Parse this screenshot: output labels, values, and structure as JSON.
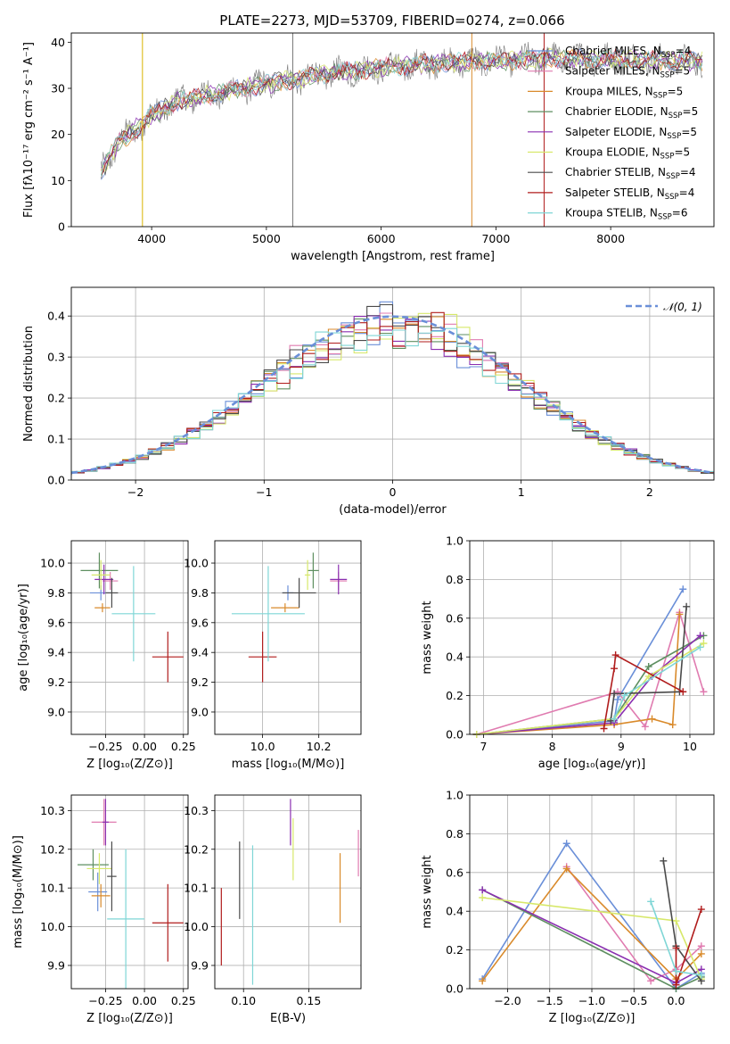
{
  "figure_title": "PLATE=2273, MJD=53709, FIBERID=0274, z=0.066",
  "models": [
    {
      "label": "Chabrier MILES, N$_{SSP}$=4",
      "color": "#6a8fd8"
    },
    {
      "label": "Salpeter MILES, N$_{SSP}$=5",
      "color": "#e07bb0"
    },
    {
      "label": "Kroupa MILES, N$_{SSP}$=5",
      "color": "#d98a2b"
    },
    {
      "label": "Chabrier ELODIE, N$_{SSP}$=5",
      "color": "#5e8f60"
    },
    {
      "label": "Salpeter ELODIE, N$_{SSP}$=5",
      "color": "#8a2fb0"
    },
    {
      "label": "Kroupa ELODIE, N$_{SSP}$=5",
      "color": "#d7e86a"
    },
    {
      "label": "Chabrier STELIB, N$_{SSP}$=4",
      "color": "#4a4a4a"
    },
    {
      "label": "Salpeter STELIB, N$_{SSP}$=4",
      "color": "#b01c1c"
    },
    {
      "label": "Kroupa STELIB, N$_{SSP}$=6",
      "color": "#7fd6d6"
    }
  ],
  "legend_labels": [
    {
      "pre": "Chabrier MILES, N",
      "sub": "SSP",
      "post": "=4"
    },
    {
      "pre": "Salpeter MILES, N",
      "sub": "SSP",
      "post": "=5"
    },
    {
      "pre": "Kroupa MILES, N",
      "sub": "SSP",
      "post": "=5"
    },
    {
      "pre": "Chabrier ELODIE, N",
      "sub": "SSP",
      "post": "=5"
    },
    {
      "pre": "Salpeter ELODIE, N",
      "sub": "SSP",
      "post": "=5"
    },
    {
      "pre": "Kroupa ELODIE, N",
      "sub": "SSP",
      "post": "=5"
    },
    {
      "pre": "Chabrier STELIB, N",
      "sub": "SSP",
      "post": "=4"
    },
    {
      "pre": "Salpeter STELIB, N",
      "sub": "SSP",
      "post": "=4"
    },
    {
      "pre": "Kroupa STELIB, N",
      "sub": "SSP",
      "post": "=6"
    }
  ],
  "chart_data": [
    {
      "id": "spectrum",
      "type": "line",
      "xlabel": "wavelength [Angstrom, rest frame]",
      "ylabel": "Flux [fλ10⁻¹⁷ erg cm⁻² s⁻¹ A⁻¹]",
      "xlim": [
        3300,
        8900
      ],
      "ylim": [
        0,
        42
      ],
      "xticks": [
        "4000",
        "5000",
        "6000",
        "7000",
        "8000"
      ],
      "yticks": [
        "0",
        "10",
        "20",
        "30",
        "40"
      ],
      "continuum_knots": [
        [
          3560,
          12
        ],
        [
          3700,
          18
        ],
        [
          3900,
          22
        ],
        [
          4000,
          24
        ],
        [
          4200,
          27
        ],
        [
          4600,
          29
        ],
        [
          5000,
          31
        ],
        [
          5500,
          33
        ],
        [
          6000,
          34.5
        ],
        [
          6500,
          35.5
        ],
        [
          7000,
          36
        ],
        [
          7500,
          36.5
        ],
        [
          8000,
          36.3
        ],
        [
          8500,
          36
        ],
        [
          8800,
          36
        ]
      ],
      "emission_spikes": [
        3727,
        5007,
        6563,
        6583
      ]
    },
    {
      "id": "residuals",
      "type": "histogram",
      "xlabel": "(data-model)/error",
      "ylabel": "Normed distribution",
      "xlim": [
        -2.5,
        2.5
      ],
      "ylim": [
        0,
        0.47
      ],
      "xticks": [
        "−2",
        "−1",
        "0",
        "1",
        "2"
      ],
      "yticks": [
        "0.0",
        "0.1",
        "0.2",
        "0.3",
        "0.4"
      ],
      "bin_width": 0.1,
      "reference_label": "𝒩(0, 1)",
      "reference_color": "#6a8fd8"
    },
    {
      "id": "age_vs_Z",
      "type": "errorbar",
      "xlabel": "Z [log₁₀(Z/Z⊙)]",
      "ylabel": "age  [log₁₀(age/yr)]",
      "xlim": [
        -0.47,
        0.28
      ],
      "ylim": [
        8.85,
        10.15
      ],
      "xticks": [
        "−0.25",
        "0.00",
        "0.25"
      ],
      "xtick_values": [
        -0.25,
        0,
        0.25
      ],
      "yticks": [
        "9.0",
        "9.2",
        "9.4",
        "9.6",
        "9.8",
        "10.0"
      ],
      "ytick_values": [
        9.0,
        9.2,
        9.4,
        9.6,
        9.8,
        10.0
      ],
      "points": [
        {
          "x": -0.28,
          "xerr": 0.07,
          "y": 9.8,
          "yerr": 0.05,
          "model": 0
        },
        {
          "x": -0.22,
          "xerr": 0.05,
          "y": 9.88,
          "yerr": 0.06,
          "model": 1
        },
        {
          "x": -0.27,
          "xerr": 0.05,
          "y": 9.7,
          "yerr": 0.03,
          "model": 2
        },
        {
          "x": -0.29,
          "xerr": 0.12,
          "y": 9.95,
          "yerr": 0.12,
          "model": 3
        },
        {
          "x": -0.26,
          "xerr": 0.06,
          "y": 9.89,
          "yerr": 0.1,
          "model": 4
        },
        {
          "x": -0.28,
          "xerr": 0.06,
          "y": 9.92,
          "yerr": 0.1,
          "model": 5
        },
        {
          "x": -0.21,
          "xerr": 0.04,
          "y": 9.8,
          "yerr": 0.1,
          "model": 6
        },
        {
          "x": 0.15,
          "xerr": 0.1,
          "y": 9.37,
          "yerr": 0.17,
          "model": 7
        },
        {
          "x": -0.07,
          "xerr": 0.14,
          "y": 9.66,
          "yerr": 0.32,
          "model": 8
        }
      ]
    },
    {
      "id": "age_vs_mass",
      "type": "errorbar",
      "xlabel": "mass [log₁₀(M/M⊙)]",
      "ylabel": "",
      "xlim": [
        9.83,
        10.35
      ],
      "ylim": [
        8.85,
        10.15
      ],
      "xticks": [
        "10.0",
        "10.2"
      ],
      "xtick_values": [
        10.0,
        10.2
      ],
      "yticks": [
        "9.0",
        "9.2",
        "9.4",
        "9.6",
        "9.8",
        "10.0"
      ],
      "ytick_values": [
        9.0,
        9.2,
        9.4,
        9.6,
        9.8,
        10.0
      ],
      "points": [
        {
          "x": 10.09,
          "xerr": 0.02,
          "y": 9.8,
          "yerr": 0.05,
          "model": 0
        },
        {
          "x": 10.27,
          "xerr": 0.03,
          "y": 9.88,
          "yerr": 0.06,
          "model": 1
        },
        {
          "x": 10.08,
          "xerr": 0.05,
          "y": 9.7,
          "yerr": 0.03,
          "model": 2
        },
        {
          "x": 10.18,
          "xerr": 0.02,
          "y": 9.95,
          "yerr": 0.12,
          "model": 3
        },
        {
          "x": 10.27,
          "xerr": 0.03,
          "y": 9.89,
          "yerr": 0.1,
          "model": 4
        },
        {
          "x": 10.16,
          "xerr": 0.01,
          "y": 9.92,
          "yerr": 0.1,
          "model": 5
        },
        {
          "x": 10.13,
          "xerr": 0.06,
          "y": 9.8,
          "yerr": 0.1,
          "model": 6
        },
        {
          "x": 10.0,
          "xerr": 0.05,
          "y": 9.37,
          "yerr": 0.17,
          "model": 7
        },
        {
          "x": 10.02,
          "xerr": 0.13,
          "y": 9.66,
          "yerr": 0.32,
          "model": 8
        }
      ]
    },
    {
      "id": "weight_vs_age",
      "type": "line",
      "xlabel": "age  [log₁₀(age/yr)]",
      "ylabel": "mass weight",
      "xlim": [
        6.8,
        10.35
      ],
      "ylim": [
        0,
        1
      ],
      "xticks": [
        "7",
        "8",
        "9",
        "10"
      ],
      "xtick_values": [
        7,
        8,
        9,
        10
      ],
      "yticks": [
        "0.0",
        "0.2",
        "0.4",
        "0.6",
        "0.8",
        "1.0"
      ],
      "ytick_values": [
        0,
        0.2,
        0.4,
        0.6,
        0.8,
        1.0
      ],
      "series": [
        {
          "model": 0,
          "points": [
            [
              6.9,
              0
            ],
            [
              8.9,
              0.07
            ],
            [
              8.95,
              0.18
            ],
            [
              9.9,
              0.75
            ]
          ]
        },
        {
          "model": 1,
          "points": [
            [
              6.9,
              0
            ],
            [
              8.95,
              0.22
            ],
            [
              9.35,
              0.04
            ],
            [
              9.85,
              0.63
            ],
            [
              10.2,
              0.22
            ]
          ]
        },
        {
          "model": 2,
          "points": [
            [
              6.9,
              0
            ],
            [
              8.9,
              0.05
            ],
            [
              9.45,
              0.08
            ],
            [
              9.75,
              0.05
            ],
            [
              9.85,
              0.62
            ]
          ]
        },
        {
          "model": 3,
          "points": [
            [
              6.9,
              0
            ],
            [
              8.9,
              0.08
            ],
            [
              9.4,
              0.35
            ],
            [
              10.2,
              0.51
            ]
          ]
        },
        {
          "model": 4,
          "points": [
            [
              6.9,
              0
            ],
            [
              8.9,
              0.06
            ],
            [
              9.45,
              0.3
            ],
            [
              10.15,
              0.51
            ]
          ]
        },
        {
          "model": 5,
          "points": [
            [
              6.9,
              0
            ],
            [
              8.9,
              0.08
            ],
            [
              9.4,
              0.3
            ],
            [
              10.2,
              0.47
            ]
          ]
        },
        {
          "model": 6,
          "points": [
            [
              8.85,
              0.07
            ],
            [
              8.9,
              0.21
            ],
            [
              9.85,
              0.22
            ],
            [
              9.95,
              0.66
            ]
          ]
        },
        {
          "model": 7,
          "points": [
            [
              8.75,
              0.03
            ],
            [
              8.9,
              0.34
            ],
            [
              8.92,
              0.41
            ],
            [
              9.9,
              0.22
            ]
          ]
        },
        {
          "model": 8,
          "points": [
            [
              8.9,
              0.08
            ],
            [
              9.05,
              0.2
            ],
            [
              10.15,
              0.45
            ]
          ]
        }
      ]
    },
    {
      "id": "mass_vs_Z",
      "type": "errorbar",
      "xlabel": "Z [log₁₀(Z/Z⊙)]",
      "ylabel": "mass [log₁₀(M/M⊙)]",
      "xlim": [
        -0.47,
        0.28
      ],
      "ylim": [
        9.84,
        10.34
      ],
      "xticks": [
        "−0.25",
        "0.00",
        "0.25"
      ],
      "xtick_values": [
        -0.25,
        0,
        0.25
      ],
      "yticks": [
        "9.9",
        "10.0",
        "10.1",
        "10.2",
        "10.3"
      ],
      "ytick_values": [
        9.9,
        10.0,
        10.1,
        10.2,
        10.3
      ],
      "points": [
        {
          "x": -0.3,
          "xerr": 0.06,
          "y": 10.09,
          "yerr": 0.05,
          "model": 0
        },
        {
          "x": -0.26,
          "xerr": 0.08,
          "y": 10.27,
          "yerr": 0.06,
          "model": 1
        },
        {
          "x": -0.28,
          "xerr": 0.06,
          "y": 10.08,
          "yerr": 0.03,
          "model": 2
        },
        {
          "x": -0.33,
          "xerr": 0.1,
          "y": 10.16,
          "yerr": 0.04,
          "model": 3
        },
        {
          "x": -0.25,
          "xerr": 0.02,
          "y": 10.27,
          "yerr": 0.06,
          "model": 4
        },
        {
          "x": -0.29,
          "xerr": 0.08,
          "y": 10.15,
          "yerr": 0.04,
          "model": 5
        },
        {
          "x": -0.21,
          "xerr": 0.03,
          "y": 10.13,
          "yerr": 0.09,
          "model": 6
        },
        {
          "x": 0.15,
          "xerr": 0.1,
          "y": 10.01,
          "yerr": 0.1,
          "model": 7
        },
        {
          "x": -0.12,
          "xerr": 0.12,
          "y": 10.02,
          "yerr": 0.18,
          "model": 8
        }
      ]
    },
    {
      "id": "mass_vs_EBV",
      "type": "errorbar",
      "xlabel": "E(B-V)",
      "ylabel": "",
      "xlim": [
        0.078,
        0.19
      ],
      "ylim": [
        9.84,
        10.34
      ],
      "xticks": [
        "0.10",
        "0.15"
      ],
      "xtick_values": [
        0.1,
        0.15
      ],
      "yticks": [
        "9.9",
        "10.0",
        "10.1",
        "10.2",
        "10.3"
      ],
      "ytick_values": [
        9.9,
        10.0,
        10.1,
        10.2,
        10.3
      ],
      "points": [
        {
          "x": 0.188,
          "xerr": 0,
          "y": 10.19,
          "yerr": 0.06,
          "model": 1
        },
        {
          "x": 0.174,
          "xerr": 0,
          "y": 10.1,
          "yerr": 0.09,
          "model": 2
        },
        {
          "x": 0.136,
          "xerr": 0,
          "y": 10.27,
          "yerr": 0.06,
          "model": 4
        },
        {
          "x": 0.138,
          "xerr": 0,
          "y": 10.2,
          "yerr": 0.08,
          "model": 5
        },
        {
          "x": 0.097,
          "xerr": 0,
          "y": 10.12,
          "yerr": 0.1,
          "model": 6
        },
        {
          "x": 0.083,
          "xerr": 0,
          "y": 10.0,
          "yerr": 0.1,
          "model": 7
        },
        {
          "x": 0.107,
          "xerr": 0,
          "y": 10.03,
          "yerr": 0.18,
          "model": 8
        }
      ]
    },
    {
      "id": "weight_vs_Z",
      "type": "line",
      "xlabel": "Z [log₁₀(Z/Z⊙)]",
      "ylabel": "mass weight",
      "xlim": [
        -2.45,
        0.45
      ],
      "ylim": [
        0,
        1
      ],
      "xticks": [
        "−2.0",
        "−1.5",
        "−1.0",
        "−0.5",
        "0.0"
      ],
      "xtick_values": [
        -2.0,
        -1.5,
        -1.0,
        -0.5,
        0.0
      ],
      "yticks": [
        "0.0",
        "0.2",
        "0.4",
        "0.6",
        "0.8",
        "1.0"
      ],
      "ytick_values": [
        0,
        0.2,
        0.4,
        0.6,
        0.8,
        1.0
      ],
      "series": [
        {
          "model": 0,
          "points": [
            [
              -2.3,
              0.05
            ],
            [
              -1.3,
              0.75
            ],
            [
              0.0,
              0.0
            ],
            [
              0.3,
              0.08
            ]
          ]
        },
        {
          "model": 1,
          "points": [
            [
              -1.3,
              0.63
            ],
            [
              -0.3,
              0.04
            ],
            [
              0.0,
              0.1
            ],
            [
              0.3,
              0.22
            ]
          ]
        },
        {
          "model": 2,
          "points": [
            [
              -2.3,
              0.04
            ],
            [
              -1.3,
              0.62
            ],
            [
              0.0,
              0.05
            ],
            [
              0.3,
              0.18
            ]
          ]
        },
        {
          "model": 3,
          "points": [
            [
              -2.3,
              0.51
            ],
            [
              0.0,
              0.0
            ],
            [
              0.3,
              0.06
            ]
          ]
        },
        {
          "model": 4,
          "points": [
            [
              -2.3,
              0.51
            ],
            [
              0.0,
              0.03
            ],
            [
              0.3,
              0.1
            ]
          ]
        },
        {
          "model": 5,
          "points": [
            [
              -2.3,
              0.47
            ],
            [
              0.0,
              0.35
            ],
            [
              0.3,
              0.05
            ]
          ]
        },
        {
          "model": 6,
          "points": [
            [
              -0.15,
              0.66
            ],
            [
              0.0,
              0.22
            ],
            [
              0.3,
              0.04
            ]
          ]
        },
        {
          "model": 7,
          "points": [
            [
              0.0,
              0.21
            ],
            [
              0.0,
              0.02
            ],
            [
              0.3,
              0.41
            ]
          ]
        },
        {
          "model": 8,
          "points": [
            [
              -0.3,
              0.45
            ],
            [
              0.0,
              0.09
            ],
            [
              0.3,
              0.07
            ]
          ]
        }
      ]
    }
  ]
}
